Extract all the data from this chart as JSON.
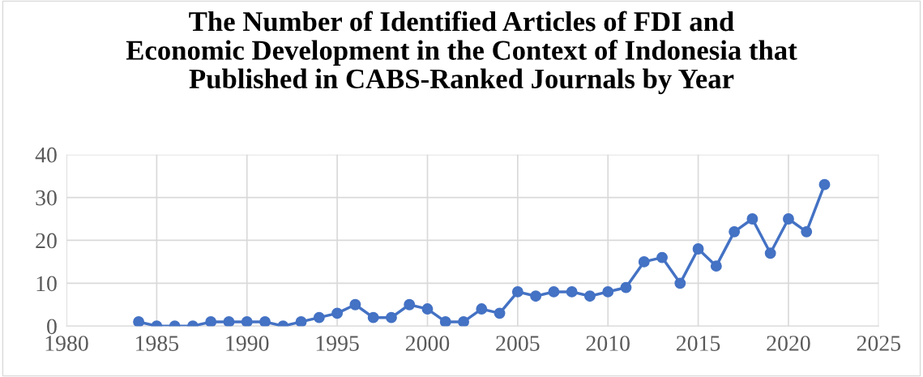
{
  "chart_data": {
    "type": "line",
    "title": "The Number of Identified Articles of FDI and\nEconomic Development in the Context of Indonesia that\nPublished in CABS-Ranked Journals by Year",
    "x": [
      1984,
      1985,
      1986,
      1987,
      1988,
      1989,
      1990,
      1991,
      1992,
      1993,
      1994,
      1995,
      1996,
      1997,
      1998,
      1999,
      2000,
      2001,
      2002,
      2003,
      2004,
      2005,
      2006,
      2007,
      2008,
      2009,
      2010,
      2011,
      2012,
      2013,
      2014,
      2015,
      2016,
      2017,
      2018,
      2019,
      2020,
      2021,
      2022
    ],
    "series": [
      {
        "color": "#4472c4",
        "values": [
          1,
          0,
          0,
          0,
          1,
          1,
          1,
          1,
          0,
          1,
          2,
          3,
          5,
          2,
          2,
          5,
          4,
          1,
          1,
          4,
          3,
          8,
          7,
          8,
          8,
          7,
          8,
          9,
          15,
          16,
          10,
          18,
          14,
          22,
          25,
          17,
          25,
          22,
          33
        ]
      }
    ],
    "xlim": [
      1980,
      2025
    ],
    "xticks": [
      1980,
      1985,
      1990,
      1995,
      2000,
      2005,
      2010,
      2015,
      2020,
      2025
    ],
    "ylim": [
      0,
      40
    ],
    "yticks": [
      0,
      10,
      20,
      30,
      40
    ],
    "grid": true,
    "marker": "circle",
    "line_style": "solid"
  }
}
